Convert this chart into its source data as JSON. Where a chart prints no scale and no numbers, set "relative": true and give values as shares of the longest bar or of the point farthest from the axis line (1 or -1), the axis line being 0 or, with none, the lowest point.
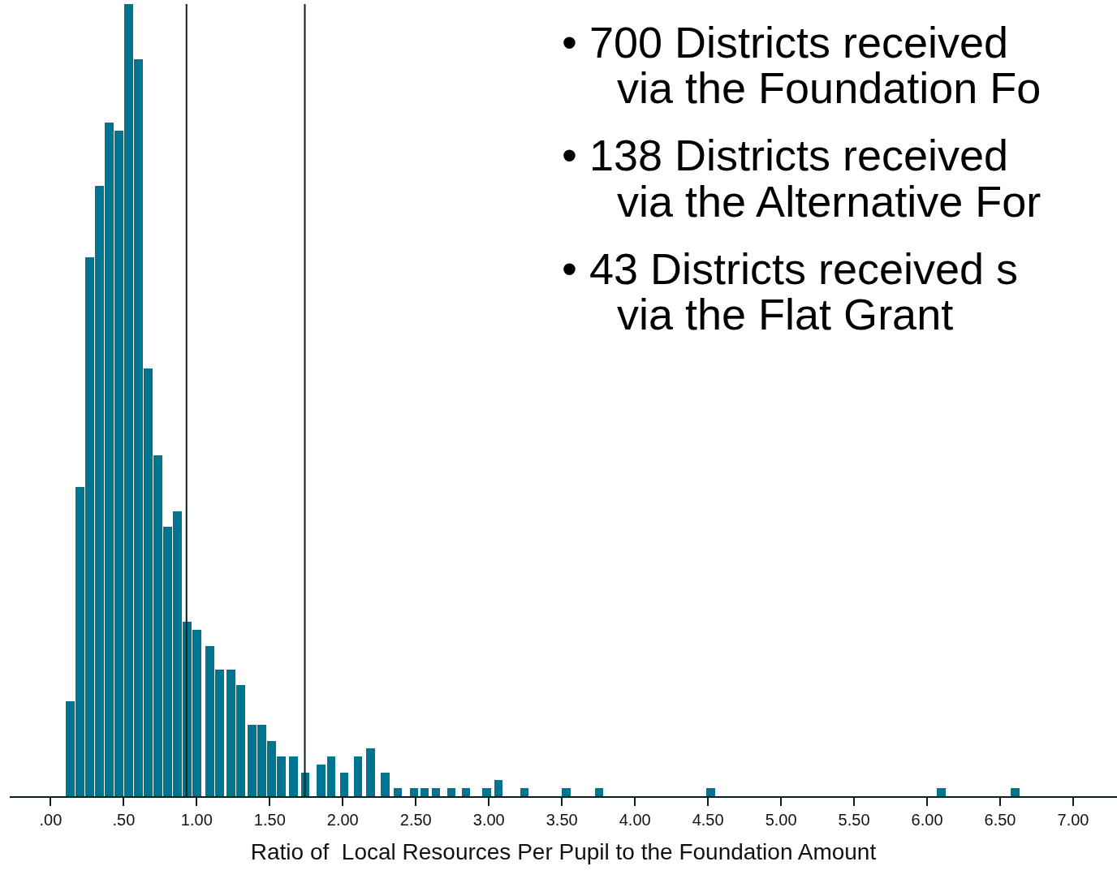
{
  "chart_data": {
    "type": "bar",
    "relative": true,
    "color": "#00758f",
    "x": [
      0.133,
      0.2,
      0.267,
      0.333,
      0.4,
      0.466,
      0.533,
      0.6,
      0.666,
      0.733,
      0.8,
      0.866,
      0.933,
      0.999,
      1.088,
      1.155,
      1.233,
      1.299,
      1.377,
      1.444,
      1.51,
      1.577,
      1.66,
      1.743,
      1.849,
      1.921,
      2.01,
      2.104,
      2.188,
      2.288,
      2.376,
      2.487,
      2.56,
      2.637,
      2.743,
      2.843,
      2.987,
      3.065,
      3.243,
      3.531,
      3.754,
      4.52,
      6.097,
      6.602
    ],
    "values": [
      0.12,
      0.39,
      0.68,
      0.77,
      0.85,
      0.84,
      1,
      0.93,
      0.54,
      0.43,
      0.34,
      0.36,
      0.22,
      0.21,
      0.19,
      0.16,
      0.16,
      0.14,
      0.09,
      0.09,
      0.07,
      0.05,
      0.05,
      0.03,
      0.04,
      0.05,
      0.03,
      0.05,
      0.06,
      0.03,
      0.01,
      0.01,
      0.01,
      0.01,
      0.01,
      0.01,
      0.01,
      0.02,
      0.01,
      0.01,
      0.01,
      0.01,
      0.01,
      0.01
    ],
    "xlabel": "Ratio of  Local Resources Per Pupil to the Foundation Amount",
    "xlim": [
      -0.28,
      7.3
    ],
    "xticks": [
      {
        "value": 0,
        "label": ".00"
      },
      {
        "value": 0.5,
        "label": ".50"
      },
      {
        "value": 1,
        "label": "1.00"
      },
      {
        "value": 1.5,
        "label": "1.50"
      },
      {
        "value": 2,
        "label": "2.00"
      },
      {
        "value": 2.5,
        "label": "2.50"
      },
      {
        "value": 3,
        "label": "3.00"
      },
      {
        "value": 3.5,
        "label": "3.50"
      },
      {
        "value": 4,
        "label": "4.00"
      },
      {
        "value": 4.5,
        "label": "4.50"
      },
      {
        "value": 5,
        "label": "5.00"
      },
      {
        "value": 5.5,
        "label": "5.50"
      },
      {
        "value": 6,
        "label": "6.00"
      },
      {
        "value": 6.5,
        "label": "6.50"
      },
      {
        "value": 7,
        "label": "7.00"
      }
    ],
    "ref_lines": [
      {
        "axis": "x",
        "value": 0.93,
        "color": "#0a1f1a"
      },
      {
        "axis": "x",
        "value": 1.74,
        "color": "#0a1f1a"
      }
    ],
    "annotations": [
      "• 700 Districts received\nvia the Foundation Fo",
      "• 138 Districts received\nvia the Alternative For",
      "• 43 Districts received s\nvia the Flat Grant"
    ],
    "line_style": "solid"
  }
}
